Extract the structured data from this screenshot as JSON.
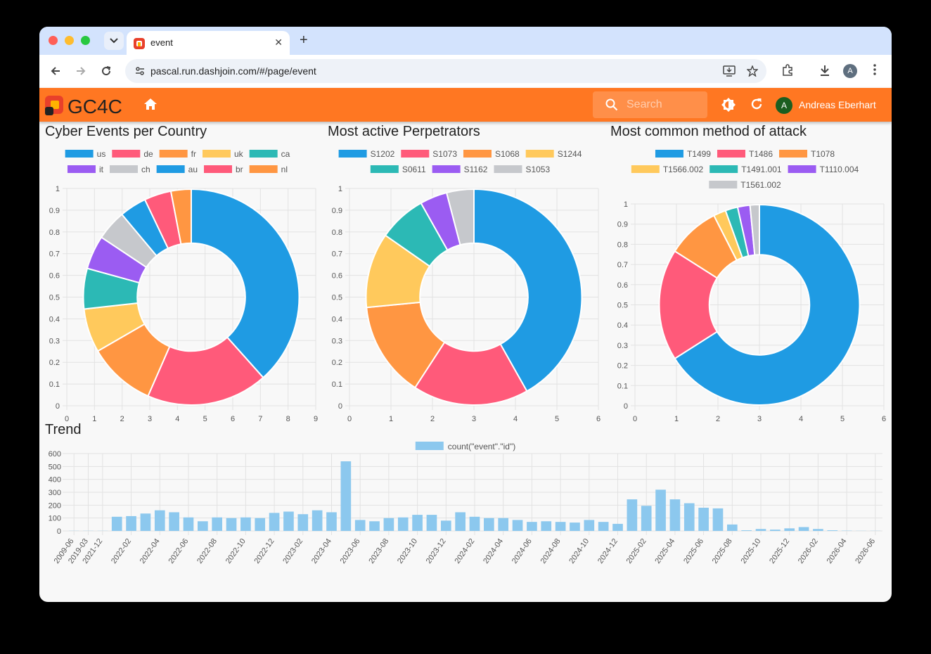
{
  "browser": {
    "tab_title": "event",
    "url": "pascal.run.dashjoin.com/#/page/event",
    "profile_initial": "A"
  },
  "app": {
    "logo_text": "GC4C",
    "search_placeholder": "Search",
    "user_initial": "A",
    "user_name": "Andreas Eberhart"
  },
  "colors": {
    "appbar": "#ff7722",
    "palette": [
      "#1f9be3",
      "#ff5a7a",
      "#ff9642",
      "#ffc95c",
      "#2cb9b5",
      "#9b5cf2",
      "#c6c8cc"
    ]
  },
  "panels": {
    "country_title": "Cyber Events per Country",
    "perp_title": "Most active Perpetrators",
    "method_title": "Most common method of attack",
    "trend_title": "Trend"
  },
  "chart_data": [
    {
      "type": "doughnut",
      "title": "Cyber Events per Country",
      "labels": [
        "us",
        "de",
        "fr",
        "uk",
        "ca",
        "it",
        "ch",
        "au",
        "br",
        "nl"
      ],
      "values": [
        38,
        18,
        10,
        6.5,
        6,
        5,
        4.5,
        4,
        4,
        3
      ],
      "colors": [
        "#1f9be3",
        "#ff5a7a",
        "#ff9642",
        "#ffc95c",
        "#2cb9b5",
        "#9b5cf2",
        "#c6c8cc",
        "#1f9be3",
        "#ff5a7a",
        "#ff9642"
      ],
      "xticks": [
        "0",
        "1",
        "2",
        "3",
        "4",
        "5",
        "6",
        "7",
        "8",
        "9"
      ],
      "yticks": [
        "0",
        "0.1",
        "0.2",
        "0.3",
        "0.4",
        "0.5",
        "0.6",
        "0.7",
        "0.8",
        "0.9",
        "1"
      ],
      "legend": "top",
      "grid": true
    },
    {
      "type": "doughnut",
      "title": "Most active Perpetrators",
      "labels": [
        "S1202",
        "S1073",
        "S1068",
        "S1244",
        "S0611",
        "S1162",
        "S1053"
      ],
      "values": [
        41,
        17,
        14,
        11,
        7,
        4,
        4
      ],
      "colors": [
        "#1f9be3",
        "#ff5a7a",
        "#ff9642",
        "#ffc95c",
        "#2cb9b5",
        "#9b5cf2",
        "#c6c8cc"
      ],
      "xticks": [
        "0",
        "1",
        "2",
        "3",
        "4",
        "5",
        "6"
      ],
      "yticks": [
        "0",
        "0.1",
        "0.2",
        "0.3",
        "0.4",
        "0.5",
        "0.6",
        "0.7",
        "0.8",
        "0.9",
        "1"
      ],
      "legend": "top",
      "grid": true
    },
    {
      "type": "doughnut",
      "title": "Most common method of attack",
      "labels": [
        "T1499",
        "T1486",
        "T1078",
        "T1566.002",
        "T1491.001",
        "T1110.004",
        "T1561.002"
      ],
      "values": [
        66,
        18,
        8.5,
        2,
        2,
        2,
        1.5
      ],
      "colors": [
        "#1f9be3",
        "#ff5a7a",
        "#ff9642",
        "#ffc95c",
        "#2cb9b5",
        "#9b5cf2",
        "#c6c8cc"
      ],
      "xticks": [
        "0",
        "1",
        "2",
        "3",
        "4",
        "5",
        "6"
      ],
      "yticks": [
        "0",
        "0.1",
        "0.2",
        "0.3",
        "0.4",
        "0.5",
        "0.6",
        "0.7",
        "0.8",
        "0.9",
        "1"
      ],
      "legend": "top",
      "grid": true
    },
    {
      "type": "bar",
      "title": "Trend",
      "series": [
        {
          "name": "count(\"event\".\"id\")",
          "color": "#8cc8ee"
        }
      ],
      "categories": [
        "2009-06",
        "2019-03",
        "2021-12",
        "2022-01",
        "2022-02",
        "2022-03",
        "2022-04",
        "2022-05",
        "2022-06",
        "2022-07",
        "2022-08",
        "2022-09",
        "2022-10",
        "2022-11",
        "2022-12",
        "2023-01",
        "2023-02",
        "2023-03",
        "2023-04",
        "2023-05",
        "2023-06",
        "2023-07",
        "2023-08",
        "2023-09",
        "2023-10",
        "2023-11",
        "2023-12",
        "2024-01",
        "2024-02",
        "2024-03",
        "2024-04",
        "2024-05",
        "2024-06",
        "2024-07",
        "2024-08",
        "2024-09",
        "2024-10",
        "2024-11",
        "2024-12",
        "2025-01",
        "2025-02",
        "2025-03",
        "2025-04",
        "2025-05",
        "2025-06",
        "2025-07",
        "2025-08",
        "2025-09",
        "2025-10",
        "2025-11",
        "2025-12",
        "2026-01",
        "2026-02",
        "2026-03",
        "2026-04",
        "2026-05",
        "2026-06"
      ],
      "values": [
        1,
        1,
        1,
        110,
        115,
        135,
        160,
        145,
        105,
        75,
        105,
        100,
        105,
        100,
        140,
        150,
        130,
        160,
        145,
        540,
        85,
        75,
        100,
        105,
        125,
        125,
        80,
        145,
        110,
        100,
        100,
        85,
        70,
        75,
        70,
        65,
        85,
        70,
        55,
        245,
        195,
        320,
        245,
        215,
        180,
        175,
        50,
        5,
        15,
        10,
        20,
        30,
        15,
        5,
        2,
        1,
        1
      ],
      "xticks": [
        "2009-06",
        "2019-03",
        "2021-12",
        "2022-02",
        "2022-04",
        "2022-06",
        "2022-08",
        "2022-10",
        "2022-12",
        "2023-02",
        "2023-04",
        "2023-06",
        "2023-08",
        "2023-10",
        "2023-12",
        "2024-02",
        "2024-04",
        "2024-06",
        "2024-08",
        "2024-10",
        "2024-12",
        "2025-02",
        "2025-04",
        "2025-06",
        "2025-08",
        "2025-10",
        "2025-12",
        "2026-02",
        "2026-04",
        "2026-06"
      ],
      "yticks": [
        "0",
        "100",
        "200",
        "300",
        "400",
        "500",
        "600"
      ],
      "ylim": [
        0,
        600
      ],
      "legend": "top",
      "grid": true
    }
  ]
}
